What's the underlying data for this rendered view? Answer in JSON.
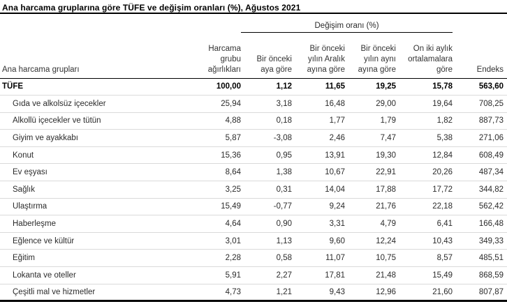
{
  "title": "Ana harcama gruplarına göre TÜFE ve değişim oranları (%), Ağustos 2021",
  "table": {
    "group_header": "Değişim oranı (%)",
    "columns": [
      {
        "id": "group",
        "label": "Ana harcama grupları"
      },
      {
        "id": "weight",
        "label": "Harcama\ngrubu\nağırlıkları"
      },
      {
        "id": "monthly",
        "label": "Bir önceki\naya göre"
      },
      {
        "id": "since-dec",
        "label": "Bir önceki\nyılın Aralık\nayına göre"
      },
      {
        "id": "annual",
        "label": "Bir önceki\nyılın aynı\nayına göre"
      },
      {
        "id": "twelve-avg",
        "label": "On iki aylık\nortalamalara\ngöre"
      },
      {
        "id": "index",
        "label": "Endeks"
      }
    ],
    "rows": [
      {
        "group": "TÜFE",
        "total": true,
        "values": [
          "100,00",
          "1,12",
          "11,65",
          "19,25",
          "15,78",
          "563,60"
        ]
      },
      {
        "group": "Gıda ve alkolsüz içecekler",
        "total": false,
        "values": [
          "25,94",
          "3,18",
          "16,48",
          "29,00",
          "19,64",
          "708,25"
        ]
      },
      {
        "group": "Alkollü içecekler ve tütün",
        "total": false,
        "values": [
          "4,88",
          "0,18",
          "1,77",
          "1,79",
          "1,82",
          "887,73"
        ]
      },
      {
        "group": "Giyim ve ayakkabı",
        "total": false,
        "values": [
          "5,87",
          "-3,08",
          "2,46",
          "7,47",
          "5,38",
          "271,06"
        ]
      },
      {
        "group": "Konut",
        "total": false,
        "values": [
          "15,36",
          "0,95",
          "13,91",
          "19,30",
          "12,84",
          "608,49"
        ]
      },
      {
        "group": "Ev eşyası",
        "total": false,
        "values": [
          "8,64",
          "1,38",
          "10,67",
          "22,91",
          "20,26",
          "487,34"
        ]
      },
      {
        "group": "Sağlık",
        "total": false,
        "values": [
          "3,25",
          "0,31",
          "14,04",
          "17,88",
          "17,72",
          "344,82"
        ]
      },
      {
        "group": "Ulaştırma",
        "total": false,
        "values": [
          "15,49",
          "-0,77",
          "9,24",
          "21,76",
          "22,18",
          "562,42"
        ]
      },
      {
        "group": "Haberleşme",
        "total": false,
        "values": [
          "4,64",
          "0,90",
          "3,31",
          "4,79",
          "6,41",
          "166,48"
        ]
      },
      {
        "group": "Eğlence ve kültür",
        "total": false,
        "values": [
          "3,01",
          "1,13",
          "9,60",
          "12,24",
          "10,43",
          "349,33"
        ]
      },
      {
        "group": "Eğitim",
        "total": false,
        "values": [
          "2,28",
          "0,58",
          "11,07",
          "10,75",
          "8,57",
          "485,51"
        ]
      },
      {
        "group": "Lokanta ve oteller",
        "total": false,
        "values": [
          "5,91",
          "2,27",
          "17,81",
          "21,48",
          "15,49",
          "868,59"
        ]
      },
      {
        "group": "Çeşitli mal ve hizmetler",
        "total": false,
        "values": [
          "4,73",
          "1,21",
          "9,43",
          "12,96",
          "21,60",
          "807,87"
        ]
      }
    ]
  },
  "colors": {
    "rule_black": "#000000",
    "row_separator": "#dadada",
    "text_primary": "#2b2b2b"
  }
}
